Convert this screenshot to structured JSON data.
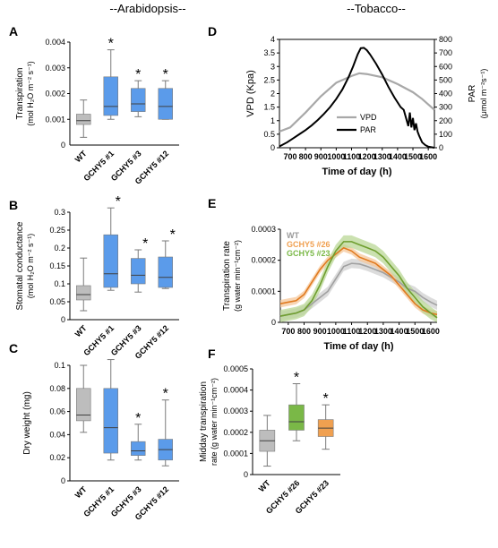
{
  "headers": {
    "left": "--Arabidopsis--",
    "right": "--Tobacco--"
  },
  "colors": {
    "wt": "#bdbdbd",
    "gchy5": "#5b9bea",
    "orange": "#f0a050",
    "green": "#7ab847",
    "vpd": "#a8a8a8",
    "par": "#000000",
    "grey_line": "#a0a0a0",
    "orange_line": "#e07a1f",
    "green_line": "#6e9e2e"
  },
  "chart_data": [
    {
      "id": "A",
      "type": "box",
      "panel_letter": "A",
      "ylabel_line1": "Transpiration",
      "ylabel_line2": "(mol H₂O m⁻² s⁻¹)",
      "ylim": [
        0,
        0.004
      ],
      "yticks": [
        0.001,
        0.002,
        0.003,
        0.004
      ],
      "ytick_labels": [
        "0.001",
        "0.002",
        "0.003",
        "0.004"
      ],
      "yzero_label": "0",
      "categories": [
        "WT",
        "GCHY5 #1",
        "GCHY5 #3",
        "GCHY5 #12"
      ],
      "boxes": [
        {
          "min": 0.0003,
          "q1": 0.0008,
          "median": 0.00095,
          "q3": 0.0012,
          "max": 0.00175,
          "star": false
        },
        {
          "min": 0.001,
          "q1": 0.00115,
          "median": 0.0015,
          "q3": 0.00265,
          "max": 0.0037,
          "star": true
        },
        {
          "min": 0.0011,
          "q1": 0.0013,
          "median": 0.0016,
          "q3": 0.0022,
          "max": 0.0025,
          "star": true
        },
        {
          "min": 0.001,
          "q1": 0.001,
          "median": 0.0015,
          "q3": 0.0022,
          "max": 0.0025,
          "star": true
        }
      ],
      "star_label": "*"
    },
    {
      "id": "B",
      "type": "box",
      "panel_letter": "B",
      "ylabel_line1": "Stomatal conductance",
      "ylabel_line2": "(mol H₂O m⁻² s⁻¹)",
      "ylim": [
        0,
        0.3
      ],
      "yticks": [
        0,
        0.05,
        0.1,
        0.15,
        0.2,
        0.25,
        0.3
      ],
      "ytick_labels": [
        "0",
        "0.05",
        "0.1",
        "0.15",
        "0.2",
        "0.25",
        "0.3"
      ],
      "categories": [
        "WT",
        "GCHY5 #1",
        "GCHY5 #3",
        "GCHY5 #12"
      ],
      "boxes": [
        {
          "min": 0.025,
          "q1": 0.055,
          "median": 0.07,
          "q3": 0.095,
          "max": 0.172,
          "star": false
        },
        {
          "min": 0.082,
          "q1": 0.09,
          "median": 0.128,
          "q3": 0.237,
          "max": 0.312,
          "star": true
        },
        {
          "min": 0.077,
          "q1": 0.1,
          "median": 0.124,
          "q3": 0.171,
          "max": 0.195,
          "star": true
        },
        {
          "min": 0.087,
          "q1": 0.09,
          "median": 0.118,
          "q3": 0.175,
          "max": 0.22,
          "star": true
        }
      ],
      "star_label": "*"
    },
    {
      "id": "C",
      "type": "box",
      "panel_letter": "C",
      "ylabel_line1": "Dry weight (mg)",
      "ylabel_line2": "",
      "ylim": [
        0,
        0.1
      ],
      "yticks": [
        0,
        0.02,
        0.04,
        0.06,
        0.08,
        0.1
      ],
      "ytick_labels": [
        "0",
        "0.02",
        "0.04",
        "0.06",
        "0.08",
        "0.1"
      ],
      "categories": [
        "WT",
        "GCHY5 #1",
        "GCHY5 #3",
        "GCHY5 #12"
      ],
      "boxes": [
        {
          "min": 0.042,
          "q1": 0.052,
          "median": 0.057,
          "q3": 0.08,
          "max": 0.1,
          "star": false
        },
        {
          "min": 0.018,
          "q1": 0.024,
          "median": 0.046,
          "q3": 0.08,
          "max": 0.105,
          "star": false
        },
        {
          "min": 0.018,
          "q1": 0.022,
          "median": 0.026,
          "q3": 0.034,
          "max": 0.049,
          "star": true
        },
        {
          "min": 0.013,
          "q1": 0.018,
          "median": 0.027,
          "q3": 0.036,
          "max": 0.07,
          "star": true
        }
      ],
      "star_label": "*"
    },
    {
      "id": "D",
      "type": "line",
      "panel_letter": "D",
      "ylabel": "VPD (Kpa)",
      "y2label_line1": "PAR",
      "y2label_line2": "(μmol m⁻²s⁻¹)",
      "xlabel": "Time of day (h)",
      "xlim": [
        630,
        1640
      ],
      "xticks": [
        700,
        800,
        900,
        1000,
        1100,
        1200,
        1300,
        1400,
        1500,
        1600
      ],
      "ylim": [
        0,
        4
      ],
      "yticks": [
        0,
        0.5,
        1,
        1.5,
        2,
        2.5,
        3,
        3.5,
        4
      ],
      "ytick_labels": [
        "0",
        "0.5",
        "1",
        "1.5",
        "2",
        "2.5",
        "3",
        "3.5",
        "4"
      ],
      "y2lim": [
        0,
        800
      ],
      "y2ticks": [
        0,
        100,
        200,
        300,
        400,
        500,
        600,
        700,
        800
      ],
      "series": [
        {
          "name": "VPD",
          "axis": "left",
          "x": [
            630,
            700,
            800,
            900,
            1000,
            1100,
            1150,
            1200,
            1300,
            1400,
            1500,
            1560,
            1640
          ],
          "y": [
            0.6,
            0.75,
            1.3,
            1.9,
            2.4,
            2.65,
            2.75,
            2.72,
            2.6,
            2.35,
            2.05,
            1.8,
            1.4
          ]
        },
        {
          "name": "PAR",
          "axis": "right",
          "x": [
            630,
            680,
            720,
            760,
            800,
            840,
            880,
            920,
            960,
            1000,
            1040,
            1080,
            1110,
            1140,
            1160,
            1180,
            1200,
            1220,
            1260,
            1300,
            1340,
            1380,
            1420,
            1440,
            1460,
            1470,
            1480,
            1490,
            1500,
            1510,
            1520,
            1530,
            1540,
            1560,
            1580,
            1600,
            1640
          ],
          "y": [
            10,
            40,
            70,
            100,
            130,
            165,
            205,
            250,
            300,
            360,
            430,
            520,
            600,
            690,
            735,
            738,
            720,
            690,
            620,
            540,
            450,
            370,
            300,
            280,
            200,
            160,
            260,
            150,
            220,
            130,
            180,
            120,
            90,
            40,
            20,
            8,
            0
          ]
        }
      ],
      "legend": [
        "VPD",
        "PAR"
      ]
    },
    {
      "id": "E",
      "type": "line",
      "panel_letter": "E",
      "ylabel_line1": "Transpiration rate",
      "ylabel_line2": "(g water min⁻¹cm⁻²)",
      "xlabel": "Time of day (h)",
      "xlim": [
        650,
        1640
      ],
      "xticks": [
        700,
        800,
        900,
        1000,
        1100,
        1200,
        1300,
        1400,
        1500,
        1600
      ],
      "ylim": [
        0,
        0.0003
      ],
      "yticks": [
        0,
        0.0001,
        0.0002,
        0.0003
      ],
      "ytick_labels": [
        "0",
        "0.0001",
        "0.0002",
        "0.0003"
      ],
      "legend": [
        "WT",
        "GCHY5 #26",
        "GCHY5 #23"
      ],
      "x": [
        650,
        700,
        750,
        800,
        850,
        900,
        950,
        1000,
        1050,
        1100,
        1150,
        1200,
        1250,
        1300,
        1350,
        1400,
        1450,
        1500,
        1550,
        1600,
        1640
      ],
      "series": [
        {
          "name": "WT",
          "y": [
            2e-05,
            2.5e-05,
            3e-05,
            4e-05,
            6e-05,
            8e-05,
            0.0001,
            0.00014,
            0.00018,
            0.00019,
            0.000188,
            0.00018,
            0.00017,
            0.00016,
            0.000145,
            0.00013,
            0.00011,
            0.0001,
            8e-05,
            6.5e-05,
            5.5e-05
          ],
          "band": 1.5e-05
        },
        {
          "name": "GCHY5 #26",
          "y": [
            6e-05,
            6.5e-05,
            7e-05,
            9e-05,
            0.00013,
            0.00017,
            0.0002,
            0.00022,
            0.00024,
            0.00023,
            0.00021,
            0.0002,
            0.00019,
            0.00017,
            0.00015,
            0.00012,
            9e-05,
            6e-05,
            4e-05,
            3e-05,
            2.5e-05
          ],
          "band": 1.2e-05
        },
        {
          "name": "GCHY5 #23",
          "y": [
            2e-05,
            2.5e-05,
            3e-05,
            4e-05,
            7e-05,
            0.00012,
            0.00018,
            0.00023,
            0.00026,
            0.00026,
            0.00025,
            0.00024,
            0.00023,
            0.00021,
            0.00018,
            0.00015,
            0.00011,
            8e-05,
            5e-05,
            3e-05,
            1.5e-05
          ],
          "band": 2e-05
        }
      ]
    },
    {
      "id": "F",
      "type": "box",
      "panel_letter": "F",
      "ylabel_line1": "Midday transpiration",
      "ylabel_line2": "rate (g water min⁻¹cm⁻²)",
      "ylim": [
        0,
        0.0005
      ],
      "yticks": [
        0,
        0.0001,
        0.0002,
        0.0003,
        0.0004,
        0.0005
      ],
      "ytick_labels": [
        "0",
        "0.0001",
        "0.0002",
        "0.0003",
        "0.0004",
        "0.0005"
      ],
      "categories": [
        "WT",
        "GCHY5 #26",
        "GCHY5 #23"
      ],
      "boxes": [
        {
          "min": 4e-05,
          "q1": 0.00011,
          "median": 0.00016,
          "q3": 0.00021,
          "max": 0.00028,
          "star": false
        },
        {
          "min": 0.00016,
          "q1": 0.00021,
          "median": 0.00025,
          "q3": 0.00033,
          "max": 0.00043,
          "star": true
        },
        {
          "min": 0.00012,
          "q1": 0.00018,
          "median": 0.00022,
          "q3": 0.00026,
          "max": 0.00033,
          "star": true
        }
      ],
      "star_label": "*"
    }
  ]
}
